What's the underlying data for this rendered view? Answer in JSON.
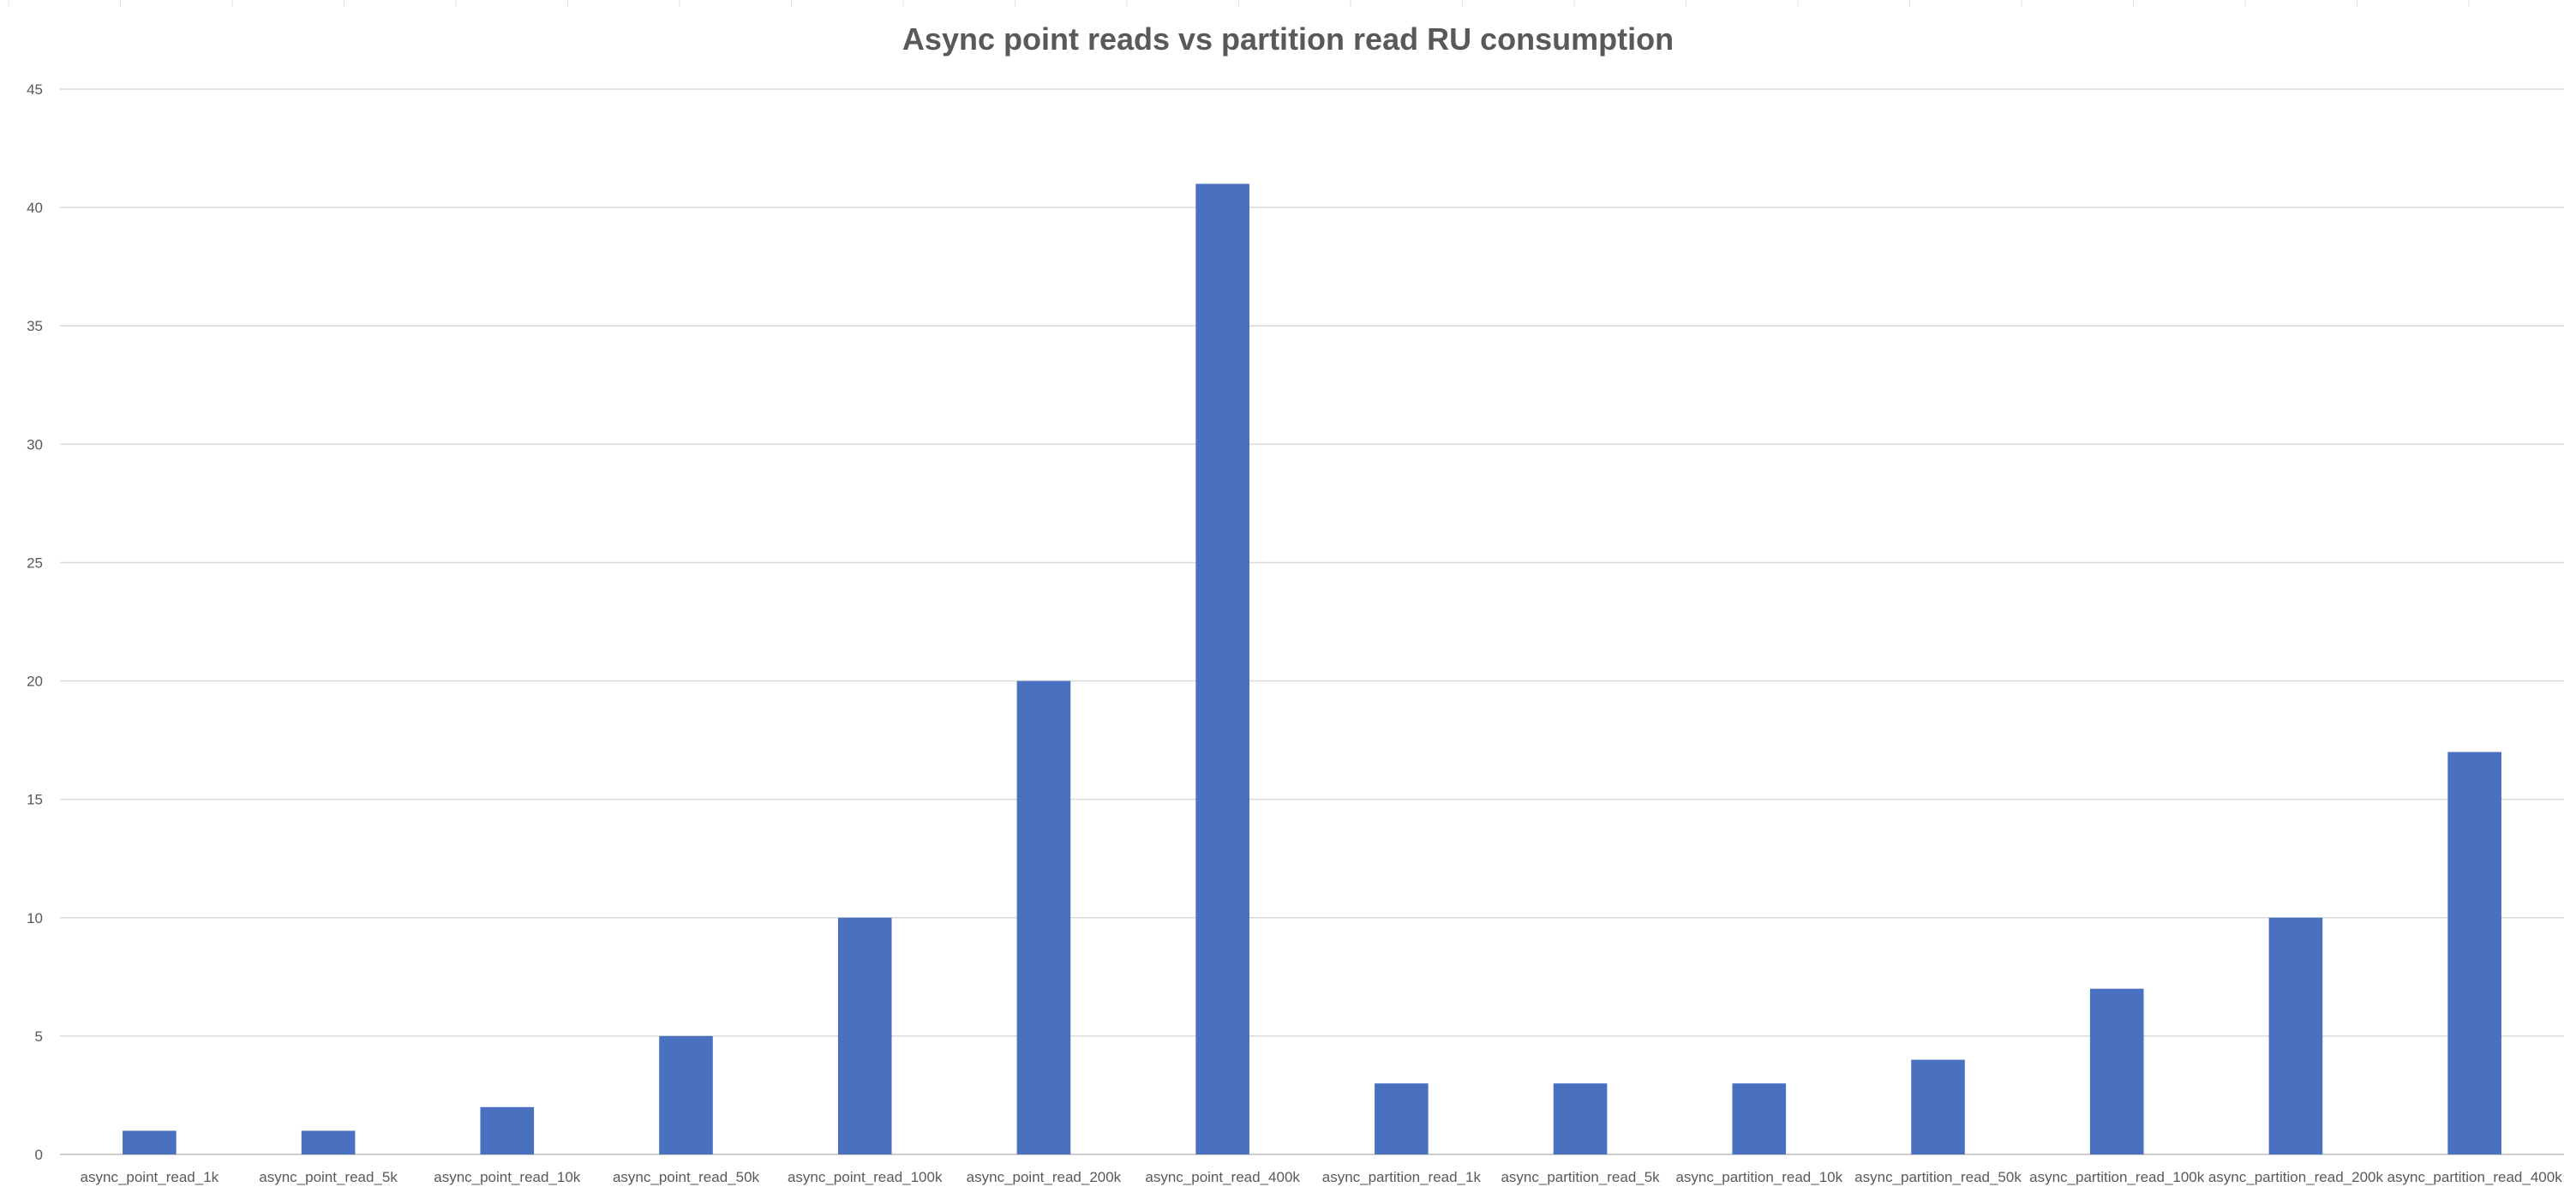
{
  "colors": {
    "bar": "#4a71bf",
    "text": "#595959",
    "grid": "#d9d9d9"
  },
  "chart_data": {
    "type": "bar",
    "title": "Async point reads vs partition read RU consumption",
    "xlabel": "",
    "ylabel": "",
    "ylim": [
      0,
      45
    ],
    "yticks": [
      0,
      5,
      10,
      15,
      20,
      25,
      30,
      35,
      40,
      45
    ],
    "grid": true,
    "legend": "none",
    "categories": [
      "async_point_read_1k",
      "async_point_read_5k",
      "async_point_read_10k",
      "async_point_read_50k",
      "async_point_read_100k",
      "async_point_read_200k",
      "async_point_read_400k",
      "async_partition_read_1k",
      "async_partition_read_5k",
      "async_partition_read_10k",
      "async_partition_read_50k",
      "async_partition_read_100k",
      "async_partition_read_200k",
      "async_partition_read_400k"
    ],
    "values": [
      1,
      1,
      2,
      5,
      10,
      20,
      41,
      3,
      3,
      3,
      4,
      7,
      10,
      17
    ]
  }
}
